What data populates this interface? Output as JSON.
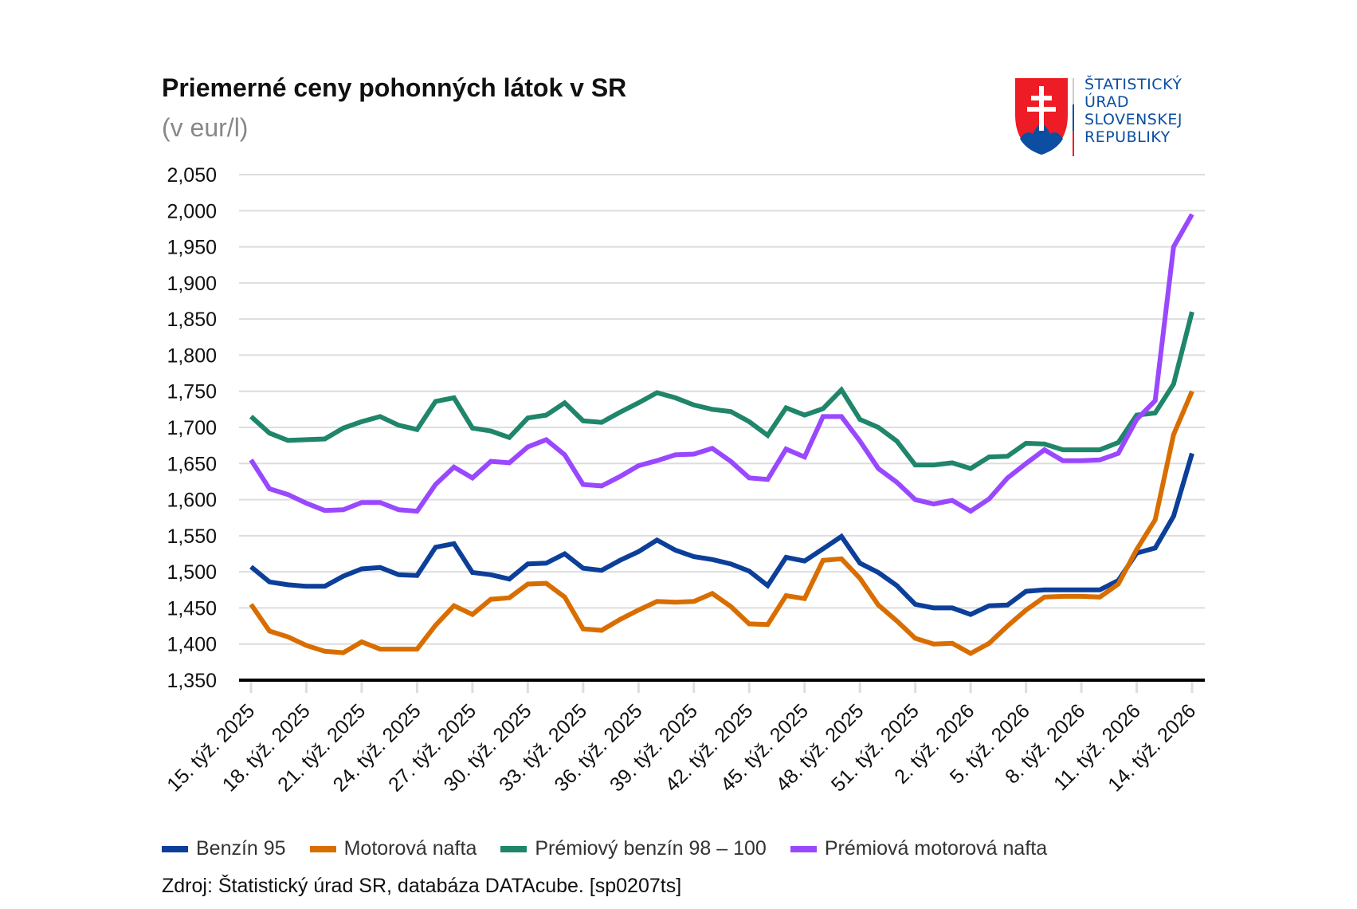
{
  "header": {
    "title": "Priemerné ceny pohonných látok v SR",
    "subtitle": "(v eur/l)"
  },
  "logo": {
    "lines": [
      "ŠTATISTICKÝ",
      "ÚRAD",
      "SLOVENSKEJ",
      "REPUBLIKY"
    ],
    "colors": {
      "red": "#ee1c25",
      "blue": "#0b4ea2",
      "white": "#ffffff"
    }
  },
  "source": "Zdroj: Štatistický úrad SR, databáza DATAcube. [sp0207ts]",
  "chart_data": {
    "type": "line",
    "title": "Priemerné ceny pohonných látok v SR",
    "subtitle": "(v eur/l)",
    "xlabel": "",
    "ylabel": "",
    "ylim": [
      1.35,
      2.05
    ],
    "yticks": [
      1.35,
      1.4,
      1.45,
      1.5,
      1.55,
      1.6,
      1.65,
      1.7,
      1.75,
      1.8,
      1.85,
      1.9,
      1.95,
      2.0,
      2.05
    ],
    "ytick_labels": [
      "1,350",
      "1,400",
      "1,450",
      "1,500",
      "1,550",
      "1,600",
      "1,650",
      "1,700",
      "1,750",
      "1,800",
      "1,850",
      "1,900",
      "1,950",
      "2,000",
      "2,050"
    ],
    "grid": true,
    "legend_position": "bottom",
    "categories": [
      "15. týž. 2025",
      "16. týž. 2025",
      "17. týž. 2025",
      "18. týž. 2025",
      "19. týž. 2025",
      "20. týž. 2025",
      "21. týž. 2025",
      "22. týž. 2025",
      "23. týž. 2025",
      "24. týž. 2025",
      "25. týž. 2025",
      "26. týž. 2025",
      "27. týž. 2025",
      "28. týž. 2025",
      "29. týž. 2025",
      "30. týž. 2025",
      "31. týž. 2025",
      "32. týž. 2025",
      "33. týž. 2025",
      "34. týž. 2025",
      "35. týž. 2025",
      "36. týž. 2025",
      "37. týž. 2025",
      "38. týž. 2025",
      "39. týž. 2025",
      "40. týž. 2025",
      "41. týž. 2025",
      "42. týž. 2025",
      "43. týž. 2025",
      "44. týž. 2025",
      "45. týž. 2025",
      "46. týž. 2025",
      "47. týž. 2025",
      "48. týž. 2025",
      "49. týž. 2025",
      "50. týž. 2025",
      "51. týž. 2025",
      "52. týž. 2025",
      "1. týž. 2026",
      "2. týž. 2026",
      "3. týž. 2026",
      "4. týž. 2026",
      "5. týž. 2026",
      "6. týž. 2026",
      "7. týž. 2026",
      "8. týž. 2026",
      "9. týž. 2026",
      "10. týž. 2026",
      "11. týž. 2026",
      "12. týž. 2026",
      "13. týž. 2026",
      "14. týž. 2026"
    ],
    "xtick_labels": [
      "15. týž. 2025",
      "18. týž. 2025",
      "21. týž. 2025",
      "24. týž. 2025",
      "27. týž. 2025",
      "30. týž. 2025",
      "33. týž. 2025",
      "36. týž. 2025",
      "39. týž. 2025",
      "42. týž. 2025",
      "45. týž. 2025",
      "48. týž. 2025",
      "51. týž. 2025",
      "2. týž. 2026",
      "5. týž. 2026",
      "8. týž. 2026",
      "11. týž. 2026",
      "14. týž. 2026"
    ],
    "series": [
      {
        "name": "Benzín 95",
        "color": "#0c3f99",
        "values": [
          1.507,
          1.486,
          1.482,
          1.48,
          1.48,
          1.494,
          1.504,
          1.506,
          1.496,
          1.495,
          1.534,
          1.539,
          1.499,
          1.496,
          1.49,
          1.511,
          1.512,
          1.525,
          1.505,
          1.502,
          1.516,
          1.528,
          1.544,
          1.53,
          1.521,
          1.517,
          1.511,
          1.501,
          1.481,
          1.52,
          1.515,
          1.532,
          1.549,
          1.512,
          1.499,
          1.481,
          1.455,
          1.45,
          1.45,
          1.441,
          1.453,
          1.454,
          1.473,
          1.475,
          1.475,
          1.475,
          1.475,
          1.488,
          1.526,
          1.533,
          1.577,
          1.664
        ]
      },
      {
        "name": "Motorová nafta",
        "color": "#d96e00",
        "values": [
          1.455,
          1.418,
          1.41,
          1.398,
          1.39,
          1.388,
          1.403,
          1.393,
          1.393,
          1.393,
          1.426,
          1.453,
          1.441,
          1.462,
          1.464,
          1.483,
          1.484,
          1.465,
          1.421,
          1.419,
          1.434,
          1.447,
          1.459,
          1.458,
          1.459,
          1.47,
          1.452,
          1.428,
          1.427,
          1.467,
          1.463,
          1.516,
          1.518,
          1.491,
          1.454,
          1.432,
          1.408,
          1.4,
          1.401,
          1.387,
          1.401,
          1.425,
          1.447,
          1.465,
          1.466,
          1.466,
          1.465,
          1.483,
          1.531,
          1.572,
          1.69,
          1.75
        ]
      },
      {
        "name": "Prémiový benzín 98 – 100",
        "color": "#1f856b",
        "values": [
          1.715,
          1.692,
          1.682,
          1.683,
          1.684,
          1.699,
          1.708,
          1.715,
          1.703,
          1.697,
          1.736,
          1.741,
          1.699,
          1.695,
          1.686,
          1.713,
          1.717,
          1.734,
          1.709,
          1.707,
          1.721,
          1.734,
          1.748,
          1.741,
          1.731,
          1.725,
          1.722,
          1.708,
          1.689,
          1.727,
          1.717,
          1.726,
          1.752,
          1.711,
          1.7,
          1.681,
          1.648,
          1.648,
          1.651,
          1.643,
          1.659,
          1.66,
          1.678,
          1.677,
          1.669,
          1.669,
          1.669,
          1.679,
          1.717,
          1.72,
          1.76,
          1.86
        ]
      },
      {
        "name": "Prémiová motorová nafta",
        "color": "#9a48ff",
        "values": [
          1.655,
          1.615,
          1.607,
          1.595,
          1.585,
          1.586,
          1.596,
          1.596,
          1.586,
          1.584,
          1.621,
          1.645,
          1.63,
          1.653,
          1.651,
          1.673,
          1.683,
          1.662,
          1.621,
          1.619,
          1.632,
          1.647,
          1.654,
          1.662,
          1.663,
          1.671,
          1.653,
          1.63,
          1.628,
          1.67,
          1.659,
          1.715,
          1.715,
          1.681,
          1.643,
          1.624,
          1.6,
          1.594,
          1.599,
          1.584,
          1.601,
          1.63,
          1.65,
          1.669,
          1.654,
          1.654,
          1.655,
          1.664,
          1.711,
          1.737,
          1.95,
          1.995
        ]
      }
    ]
  }
}
